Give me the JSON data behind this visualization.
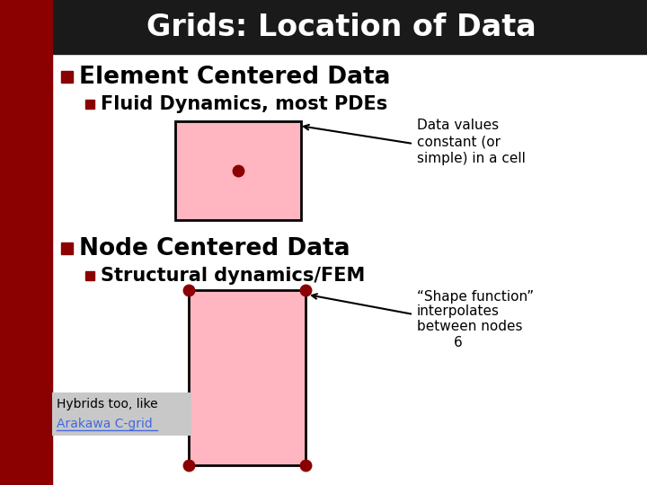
{
  "title": "Grids: Location of Data",
  "title_bg": "#1a1a1a",
  "title_color": "#ffffff",
  "left_bar_color": "#8b0000",
  "bg_color": "#ffffff",
  "bullet_color": "#8b0000",
  "pink_fill": "#ffb6c1",
  "pink_stroke": "#000000",
  "dot_color": "#8b0000",
  "node_dot_color": "#8b0000",
  "arrow_color": "#000000",
  "text_color": "#000000",
  "hybrids_bg": "#c8c8c8",
  "link_color": "#4169e1",
  "title_text": "Grids: Location of Data",
  "line1_bold": "Element Centered Data",
  "line2": "Fluid Dynamics, most PDEs",
  "annotation1_line1": "Data values",
  "annotation1_line2": "constant (or",
  "annotation1_line3": "simple) in a cell",
  "line3_bold": "Node Centered Data",
  "line4_bold": "Structural dynamics/FEM",
  "annotation2_line1": "“Shape function”",
  "annotation2_line2": "interpolates",
  "annotation2_line3": "between nodes",
  "annotation2_line4": "6",
  "hybrids_line1": "Hybrids too, like",
  "hybrids_line2": "Arakawa C-grid"
}
